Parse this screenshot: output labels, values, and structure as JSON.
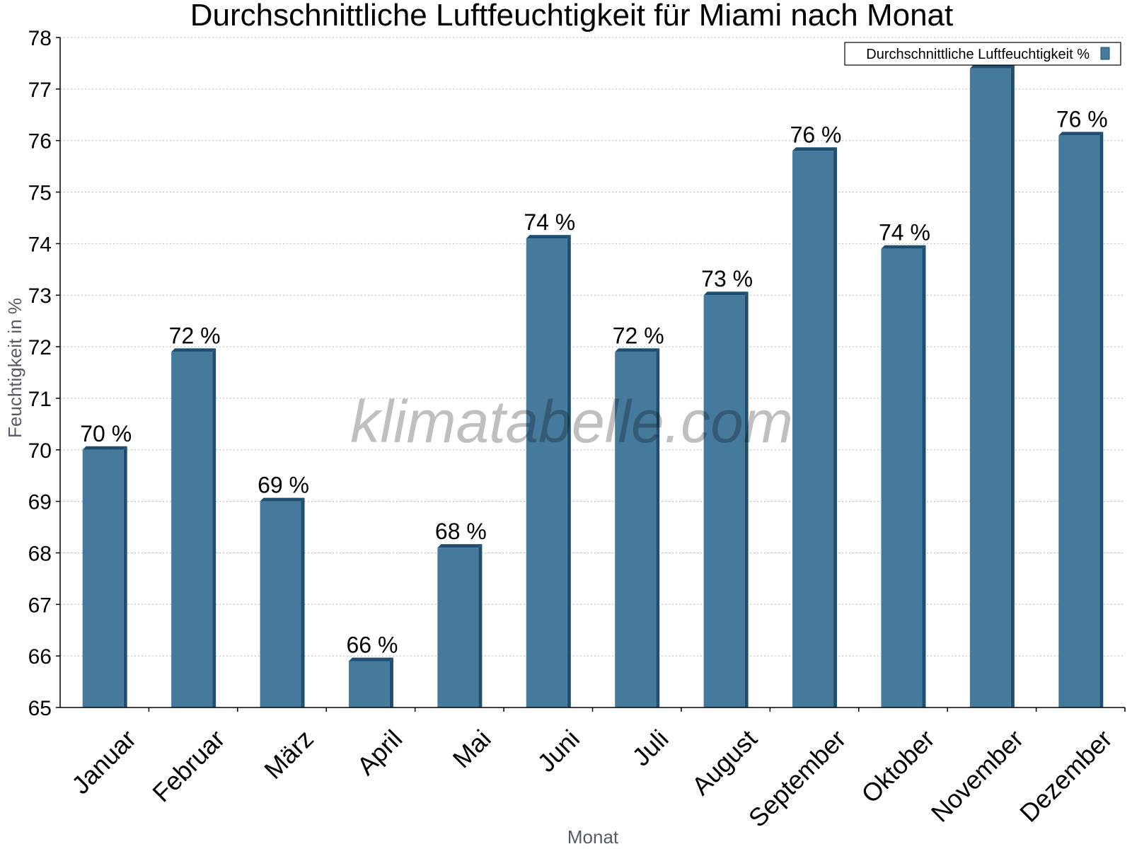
{
  "chart_data": {
    "type": "bar",
    "title": "Durchschnittliche Luftfeuchtigkeit für Miami nach Monat",
    "xlabel": "Monat",
    "ylabel": "Feuchtigkeit in %",
    "ylim": [
      65,
      78
    ],
    "yticks": [
      "65",
      "66",
      "67",
      "68",
      "69",
      "70",
      "71",
      "72",
      "73",
      "74",
      "75",
      "76",
      "77",
      "78"
    ],
    "grid": true,
    "legend_position": "top-right",
    "categories": [
      "Januar",
      "Februar",
      "März",
      "April",
      "Mai",
      "Juni",
      "Juli",
      "August",
      "September",
      "Oktober",
      "November",
      "Dezember"
    ],
    "series": [
      {
        "name": "Durchschnittliche Luftfeuchtigkeit %",
        "color": "#467a9c",
        "values": [
          70,
          71.9,
          69,
          65.9,
          68.1,
          74.1,
          71.9,
          73,
          75.8,
          73.9,
          77.4,
          76.1
        ],
        "data_labels": [
          "70 %",
          "72 %",
          "69 %",
          "66 %",
          "68 %",
          "74 %",
          "72 %",
          "73 %",
          "76 %",
          "74 %",
          "",
          "76 %"
        ]
      }
    ]
  },
  "watermark": "klimatabelle.com"
}
